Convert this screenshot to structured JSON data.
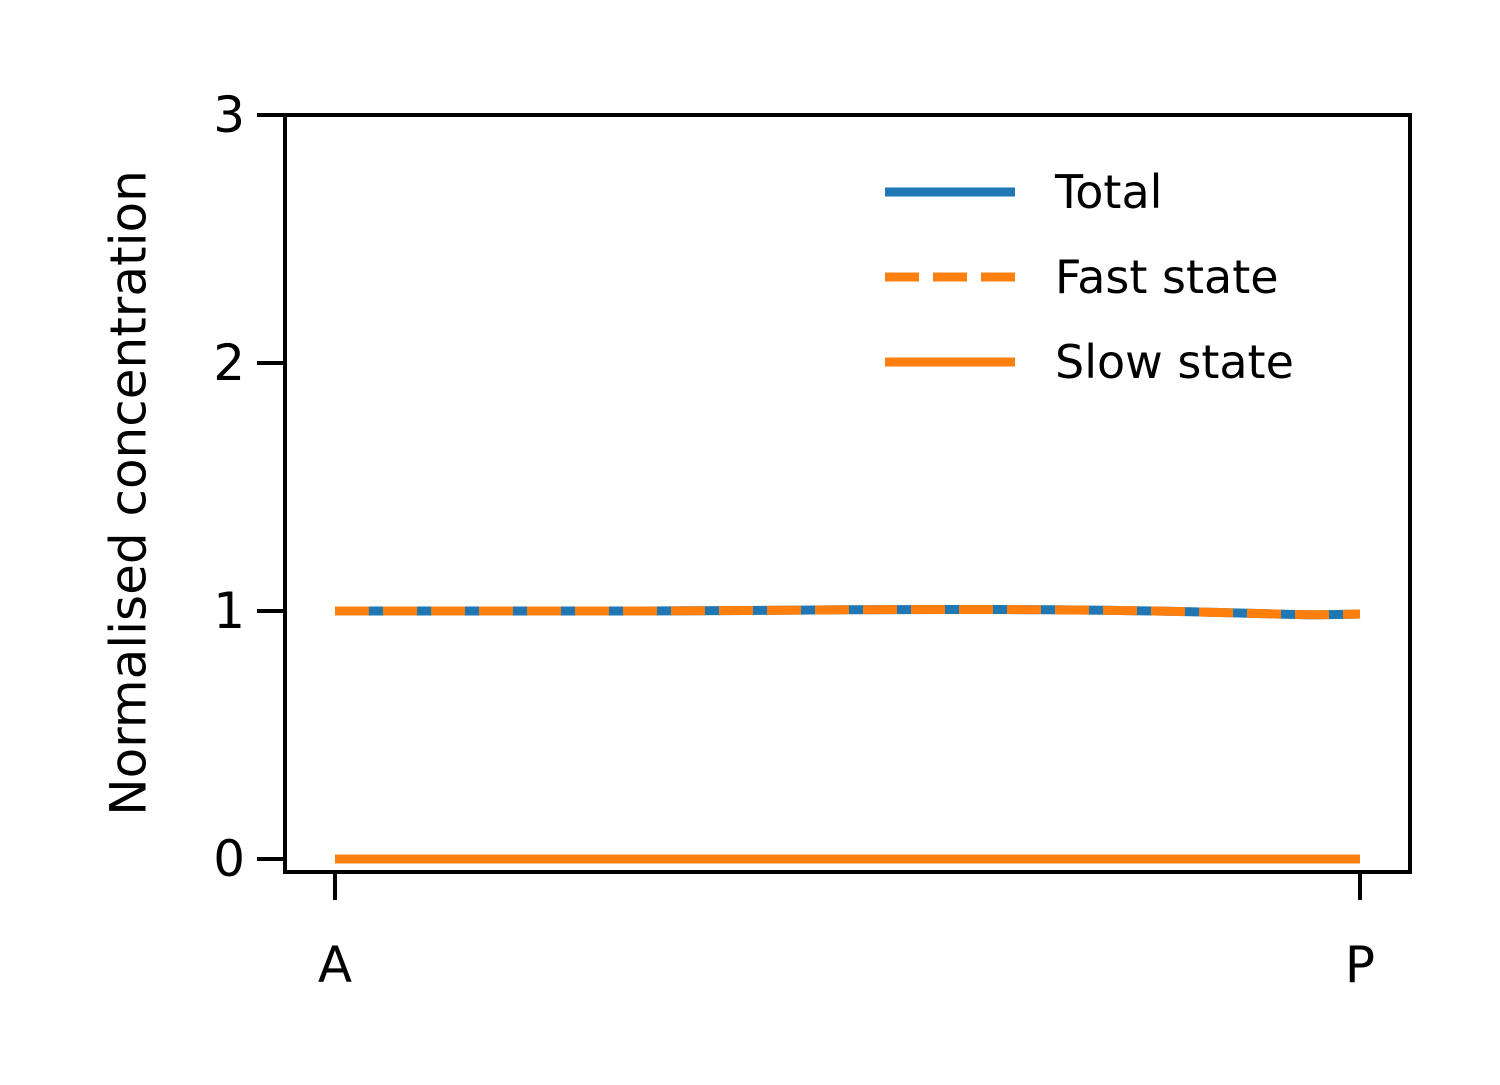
{
  "chart_data": {
    "type": "line",
    "title": "",
    "xlabel": "",
    "ylabel": "Normalised concentration",
    "x_range": [
      0,
      1
    ],
    "x_ticks": [
      {
        "value": 0,
        "label": "A"
      },
      {
        "value": 1,
        "label": "P"
      }
    ],
    "ylim": [
      -0.02,
      3
    ],
    "y_ticks": [
      {
        "value": 0,
        "label": "0"
      },
      {
        "value": 1,
        "label": "1"
      },
      {
        "value": 2,
        "label": "2"
      },
      {
        "value": 3,
        "label": "3"
      }
    ],
    "grid": false,
    "legend_position": "top-right",
    "x": [
      0,
      0.1,
      0.2,
      0.3,
      0.4,
      0.5,
      0.6,
      0.7,
      0.8,
      0.9,
      0.95,
      1.0
    ],
    "series": [
      {
        "name": "Total",
        "color": "#1f77b4",
        "style": "solid",
        "values": [
          1.0,
          1.0,
          1.0,
          1.0,
          1.002,
          1.005,
          1.006,
          1.005,
          1.0,
          0.99,
          0.985,
          0.988
        ]
      },
      {
        "name": "Fast state",
        "color": "#ff7f0e",
        "style": "dashed",
        "values": [
          1.0,
          1.0,
          1.0,
          1.0,
          1.002,
          1.005,
          1.006,
          1.005,
          1.0,
          0.99,
          0.985,
          0.988
        ]
      },
      {
        "name": "Slow state",
        "color": "#ff7f0e",
        "style": "solid",
        "values": [
          0,
          0,
          0,
          0,
          0,
          0,
          0,
          0,
          0,
          0,
          0,
          0
        ]
      }
    ]
  }
}
